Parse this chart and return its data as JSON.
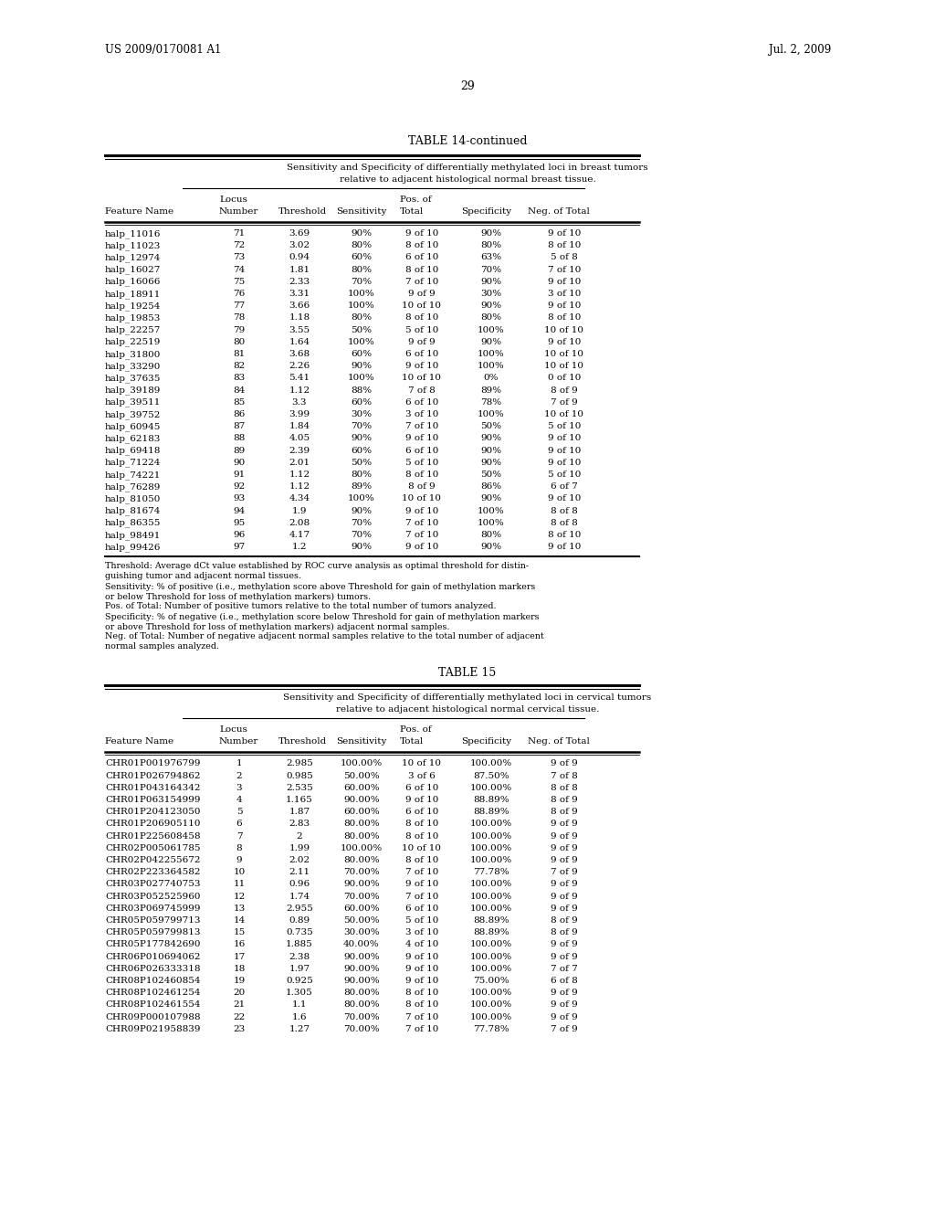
{
  "header_left": "US 2009/0170081 A1",
  "header_right": "Jul. 2, 2009",
  "page_number": "29",
  "table14_title": "TABLE 14-continued",
  "table14_subtitle1": "Sensitivity and Specificity of differentially methylated loci in breast tumors",
  "table14_subtitle2": "relative to adjacent histological normal breast tissue.",
  "table14_rows": [
    [
      "halp_11016",
      "71",
      "3.69",
      "90%",
      "9 of 10",
      "90%",
      "9 of 10"
    ],
    [
      "halp_11023",
      "72",
      "3.02",
      "80%",
      "8 of 10",
      "80%",
      "8 of 10"
    ],
    [
      "halp_12974",
      "73",
      "0.94",
      "60%",
      "6 of 10",
      "63%",
      "5 of 8"
    ],
    [
      "halp_16027",
      "74",
      "1.81",
      "80%",
      "8 of 10",
      "70%",
      "7 of 10"
    ],
    [
      "halp_16066",
      "75",
      "2.33",
      "70%",
      "7 of 10",
      "90%",
      "9 of 10"
    ],
    [
      "halp_18911",
      "76",
      "3.31",
      "100%",
      "9 of 9",
      "30%",
      "3 of 10"
    ],
    [
      "halp_19254",
      "77",
      "3.66",
      "100%",
      "10 of 10",
      "90%",
      "9 of 10"
    ],
    [
      "halp_19853",
      "78",
      "1.18",
      "80%",
      "8 of 10",
      "80%",
      "8 of 10"
    ],
    [
      "halp_22257",
      "79",
      "3.55",
      "50%",
      "5 of 10",
      "100%",
      "10 of 10"
    ],
    [
      "halp_22519",
      "80",
      "1.64",
      "100%",
      "9 of 9",
      "90%",
      "9 of 10"
    ],
    [
      "halp_31800",
      "81",
      "3.68",
      "60%",
      "6 of 10",
      "100%",
      "10 of 10"
    ],
    [
      "halp_33290",
      "82",
      "2.26",
      "90%",
      "9 of 10",
      "100%",
      "10 of 10"
    ],
    [
      "halp_37635",
      "83",
      "5.41",
      "100%",
      "10 of 10",
      "0%",
      "0 of 10"
    ],
    [
      "halp_39189",
      "84",
      "1.12",
      "88%",
      "7 of 8",
      "89%",
      "8 of 9"
    ],
    [
      "halp_39511",
      "85",
      "3.3",
      "60%",
      "6 of 10",
      "78%",
      "7 of 9"
    ],
    [
      "halp_39752",
      "86",
      "3.99",
      "30%",
      "3 of 10",
      "100%",
      "10 of 10"
    ],
    [
      "halp_60945",
      "87",
      "1.84",
      "70%",
      "7 of 10",
      "50%",
      "5 of 10"
    ],
    [
      "halp_62183",
      "88",
      "4.05",
      "90%",
      "9 of 10",
      "90%",
      "9 of 10"
    ],
    [
      "halp_69418",
      "89",
      "2.39",
      "60%",
      "6 of 10",
      "90%",
      "9 of 10"
    ],
    [
      "halp_71224",
      "90",
      "2.01",
      "50%",
      "5 of 10",
      "90%",
      "9 of 10"
    ],
    [
      "halp_74221",
      "91",
      "1.12",
      "80%",
      "8 of 10",
      "50%",
      "5 of 10"
    ],
    [
      "halp_76289",
      "92",
      "1.12",
      "89%",
      "8 of 9",
      "86%",
      "6 of 7"
    ],
    [
      "halp_81050",
      "93",
      "4.34",
      "100%",
      "10 of 10",
      "90%",
      "9 of 10"
    ],
    [
      "halp_81674",
      "94",
      "1.9",
      "90%",
      "9 of 10",
      "100%",
      "8 of 8"
    ],
    [
      "halp_86355",
      "95",
      "2.08",
      "70%",
      "7 of 10",
      "100%",
      "8 of 8"
    ],
    [
      "halp_98491",
      "96",
      "4.17",
      "70%",
      "7 of 10",
      "80%",
      "8 of 10"
    ],
    [
      "halp_99426",
      "97",
      "1.2",
      "90%",
      "9 of 10",
      "90%",
      "9 of 10"
    ]
  ],
  "table14_footnotes": [
    "Threshold: Average dCt value established by ROC curve analysis as optimal threshold for distin-",
    "guishing tumor and adjacent normal tissues.",
    "Sensitivity: % of positive (i.e., methylation score above Threshold for gain of methylation markers",
    "or below Threshold for loss of methylation markers) tumors.",
    "Pos. of Total: Number of positive tumors relative to the total number of tumors analyzed.",
    "Specificity: % of negative (i.e., methylation score below Threshold for gain of methylation markers",
    "or above Threshold for loss of methylation markers) adjacent normal samples.",
    "Neg. of Total: Number of negative adjacent normal samples relative to the total number of adjacent",
    "normal samples analyzed."
  ],
  "table15_title": "TABLE 15",
  "table15_subtitle1": "Sensitivity and Specificity of differentially methylated loci in cervical tumors",
  "table15_subtitle2": "relative to adjacent histological normal cervical tissue.",
  "table15_rows": [
    [
      "CHR01P001976799",
      "1",
      "2.985",
      "100.00%",
      "10 of 10",
      "100.00%",
      "9 of 9"
    ],
    [
      "CHR01P026794862",
      "2",
      "0.985",
      "50.00%",
      "3 of 6",
      "87.50%",
      "7 of 8"
    ],
    [
      "CHR01P043164342",
      "3",
      "2.535",
      "60.00%",
      "6 of 10",
      "100.00%",
      "8 of 8"
    ],
    [
      "CHR01P063154999",
      "4",
      "1.165",
      "90.00%",
      "9 of 10",
      "88.89%",
      "8 of 9"
    ],
    [
      "CHR01P204123050",
      "5",
      "1.87",
      "60.00%",
      "6 of 10",
      "88.89%",
      "8 of 9"
    ],
    [
      "CHR01P206905110",
      "6",
      "2.83",
      "80.00%",
      "8 of 10",
      "100.00%",
      "9 of 9"
    ],
    [
      "CHR01P225608458",
      "7",
      "2",
      "80.00%",
      "8 of 10",
      "100.00%",
      "9 of 9"
    ],
    [
      "CHR02P005061785",
      "8",
      "1.99",
      "100.00%",
      "10 of 10",
      "100.00%",
      "9 of 9"
    ],
    [
      "CHR02P042255672",
      "9",
      "2.02",
      "80.00%",
      "8 of 10",
      "100.00%",
      "9 of 9"
    ],
    [
      "CHR02P223364582",
      "10",
      "2.11",
      "70.00%",
      "7 of 10",
      "77.78%",
      "7 of 9"
    ],
    [
      "CHR03P027740753",
      "11",
      "0.96",
      "90.00%",
      "9 of 10",
      "100.00%",
      "9 of 9"
    ],
    [
      "CHR03P052525960",
      "12",
      "1.74",
      "70.00%",
      "7 of 10",
      "100.00%",
      "9 of 9"
    ],
    [
      "CHR03P069745999",
      "13",
      "2.955",
      "60.00%",
      "6 of 10",
      "100.00%",
      "9 of 9"
    ],
    [
      "CHR05P059799713",
      "14",
      "0.89",
      "50.00%",
      "5 of 10",
      "88.89%",
      "8 of 9"
    ],
    [
      "CHR05P059799813",
      "15",
      "0.735",
      "30.00%",
      "3 of 10",
      "88.89%",
      "8 of 9"
    ],
    [
      "CHR05P177842690",
      "16",
      "1.885",
      "40.00%",
      "4 of 10",
      "100.00%",
      "9 of 9"
    ],
    [
      "CHR06P010694062",
      "17",
      "2.38",
      "90.00%",
      "9 of 10",
      "100.00%",
      "9 of 9"
    ],
    [
      "CHR06P026333318",
      "18",
      "1.97",
      "90.00%",
      "9 of 10",
      "100.00%",
      "7 of 7"
    ],
    [
      "CHR08P102460854",
      "19",
      "0.925",
      "90.00%",
      "9 of 10",
      "75.00%",
      "6 of 8"
    ],
    [
      "CHR08P102461254",
      "20",
      "1.305",
      "80.00%",
      "8 of 10",
      "100.00%",
      "9 of 9"
    ],
    [
      "CHR08P102461554",
      "21",
      "1.1",
      "80.00%",
      "8 of 10",
      "100.00%",
      "9 of 9"
    ],
    [
      "CHR09P000107988",
      "22",
      "1.6",
      "70.00%",
      "7 of 10",
      "100.00%",
      "9 of 9"
    ],
    [
      "CHR09P021958839",
      "23",
      "1.27",
      "70.00%",
      "7 of 10",
      "77.78%",
      "7 of 9"
    ]
  ]
}
